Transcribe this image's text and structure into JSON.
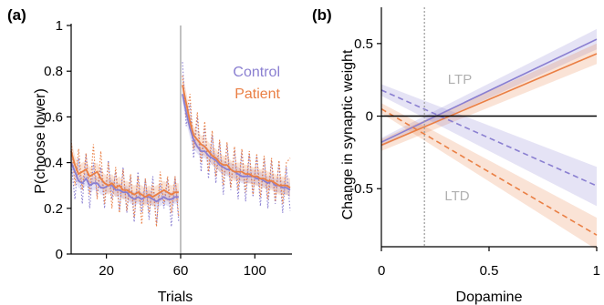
{
  "colors": {
    "control": "#8a7fd1",
    "patient": "#ea7f44",
    "vline": "#a0a0a0",
    "axis": "#000000",
    "annot": "#b0b0b0"
  },
  "chart_data": [
    {
      "panel": "(a)",
      "type": "line",
      "xlabel": "Trials",
      "ylabel": "P(choose lower)",
      "xlim": [
        1,
        120
      ],
      "ylim": [
        0,
        1
      ],
      "xticks": [
        20,
        60,
        100
      ],
      "yticks": [
        0,
        0.2,
        0.4,
        0.6,
        0.8,
        1
      ],
      "ytick_labels": [
        "0",
        "0.2",
        "0.4",
        "0.6",
        "0.8",
        "1"
      ],
      "vline_x": 60,
      "legend": [
        "Control",
        "Patient"
      ],
      "legend_position": "top-right",
      "x": [
        1,
        3,
        5,
        7,
        9,
        11,
        13,
        15,
        17,
        19,
        21,
        23,
        25,
        27,
        29,
        31,
        33,
        35,
        37,
        39,
        41,
        43,
        45,
        47,
        49,
        51,
        53,
        55,
        57,
        59,
        61,
        63,
        65,
        67,
        69,
        71,
        73,
        75,
        77,
        79,
        81,
        83,
        85,
        87,
        89,
        91,
        93,
        95,
        97,
        99,
        101,
        103,
        105,
        107,
        109,
        111,
        113,
        115,
        117,
        119
      ],
      "series": [
        {
          "name": "Control",
          "mean": [
            0.4,
            0.36,
            0.32,
            0.31,
            0.33,
            0.3,
            0.31,
            0.31,
            0.29,
            0.29,
            0.3,
            0.3,
            0.28,
            0.28,
            0.27,
            0.27,
            0.25,
            0.24,
            0.25,
            0.24,
            0.25,
            0.25,
            0.24,
            0.23,
            0.24,
            0.25,
            0.24,
            0.24,
            0.25,
            0.25,
            0.7,
            0.62,
            0.55,
            0.5,
            0.47,
            0.45,
            0.45,
            0.43,
            0.42,
            0.41,
            0.39,
            0.38,
            0.37,
            0.37,
            0.36,
            0.35,
            0.34,
            0.34,
            0.34,
            0.34,
            0.33,
            0.33,
            0.32,
            0.31,
            0.32,
            0.3,
            0.3,
            0.29,
            0.29,
            0.28
          ],
          "sem": [
            0.04,
            0.04,
            0.03,
            0.03,
            0.03,
            0.03,
            0.03,
            0.03,
            0.03,
            0.03,
            0.03,
            0.03,
            0.03,
            0.03,
            0.03,
            0.03,
            0.03,
            0.03,
            0.03,
            0.03,
            0.03,
            0.03,
            0.03,
            0.03,
            0.03,
            0.03,
            0.03,
            0.03,
            0.03,
            0.03,
            0.04,
            0.04,
            0.04,
            0.04,
            0.03,
            0.03,
            0.03,
            0.03,
            0.03,
            0.03,
            0.03,
            0.03,
            0.03,
            0.03,
            0.03,
            0.03,
            0.03,
            0.03,
            0.03,
            0.03,
            0.03,
            0.03,
            0.03,
            0.03,
            0.03,
            0.03,
            0.03,
            0.03,
            0.03,
            0.03
          ],
          "raw": [
            0.4,
            0.24,
            0.42,
            0.22,
            0.44,
            0.2,
            0.4,
            0.25,
            0.38,
            0.2,
            0.41,
            0.24,
            0.36,
            0.19,
            0.38,
            0.18,
            0.34,
            0.14,
            0.36,
            0.18,
            0.33,
            0.15,
            0.34,
            0.13,
            0.31,
            0.2,
            0.33,
            0.12,
            0.34,
            0.14,
            0.84,
            0.56,
            0.66,
            0.42,
            0.6,
            0.36,
            0.56,
            0.33,
            0.52,
            0.31,
            0.49,
            0.26,
            0.48,
            0.28,
            0.46,
            0.24,
            0.45,
            0.23,
            0.44,
            0.25,
            0.43,
            0.21,
            0.42,
            0.2,
            0.41,
            0.22,
            0.4,
            0.18,
            0.38,
            0.19
          ]
        },
        {
          "name": "Patient",
          "mean": [
            0.45,
            0.39,
            0.35,
            0.36,
            0.37,
            0.34,
            0.35,
            0.36,
            0.33,
            0.31,
            0.3,
            0.31,
            0.29,
            0.3,
            0.28,
            0.28,
            0.27,
            0.26,
            0.27,
            0.26,
            0.25,
            0.26,
            0.25,
            0.26,
            0.27,
            0.28,
            0.27,
            0.26,
            0.27,
            0.27,
            0.74,
            0.66,
            0.58,
            0.52,
            0.5,
            0.48,
            0.47,
            0.45,
            0.43,
            0.42,
            0.4,
            0.39,
            0.39,
            0.37,
            0.36,
            0.36,
            0.36,
            0.35,
            0.35,
            0.34,
            0.34,
            0.33,
            0.33,
            0.32,
            0.32,
            0.31,
            0.3,
            0.3,
            0.3,
            0.29
          ],
          "sem": [
            0.05,
            0.04,
            0.04,
            0.04,
            0.04,
            0.04,
            0.04,
            0.04,
            0.04,
            0.04,
            0.04,
            0.04,
            0.04,
            0.04,
            0.04,
            0.04,
            0.04,
            0.04,
            0.04,
            0.04,
            0.04,
            0.04,
            0.04,
            0.04,
            0.04,
            0.04,
            0.04,
            0.04,
            0.04,
            0.04,
            0.05,
            0.05,
            0.04,
            0.04,
            0.04,
            0.04,
            0.04,
            0.04,
            0.04,
            0.04,
            0.04,
            0.04,
            0.04,
            0.04,
            0.04,
            0.04,
            0.04,
            0.04,
            0.04,
            0.04,
            0.04,
            0.04,
            0.04,
            0.04,
            0.04,
            0.04,
            0.04,
            0.04,
            0.04,
            0.04
          ],
          "raw": [
            0.5,
            0.3,
            0.46,
            0.28,
            0.44,
            0.26,
            0.48,
            0.24,
            0.45,
            0.22,
            0.4,
            0.2,
            0.38,
            0.18,
            0.37,
            0.19,
            0.35,
            0.16,
            0.34,
            0.13,
            0.33,
            0.18,
            0.31,
            0.12,
            0.36,
            0.22,
            0.34,
            0.18,
            0.34,
            0.16,
            0.78,
            0.6,
            0.7,
            0.46,
            0.62,
            0.4,
            0.58,
            0.36,
            0.54,
            0.34,
            0.5,
            0.3,
            0.49,
            0.29,
            0.47,
            0.28,
            0.46,
            0.27,
            0.45,
            0.26,
            0.44,
            0.25,
            0.43,
            0.24,
            0.42,
            0.23,
            0.41,
            0.22,
            0.4,
            0.42
          ]
        }
      ]
    },
    {
      "panel": "(b)",
      "type": "line",
      "xlabel": "Dopamine",
      "ylabel": "Change in synaptic weight",
      "xlim": [
        0,
        1
      ],
      "ylim": [
        -0.9,
        0.75
      ],
      "xticks": [
        0,
        0.5,
        1
      ],
      "xtick_labels": [
        "0",
        "0.5",
        "1"
      ],
      "yticks": [
        0.5,
        0,
        -0.5
      ],
      "ytick_labels": [
        "0.5",
        "0",
        "-0.5"
      ],
      "vline_x": 0.2,
      "zero_line": true,
      "annotations": [
        "LTP",
        "LTD"
      ],
      "series": [
        {
          "name": "Control",
          "style": "solid",
          "x": [
            0,
            1
          ],
          "y": [
            -0.18,
            0.53
          ],
          "band": [
            [
              -0.21,
              0.46
            ],
            [
              -0.15,
              0.6
            ]
          ]
        },
        {
          "name": "Patient",
          "style": "solid",
          "x": [
            0,
            1
          ],
          "y": [
            -0.2,
            0.43
          ],
          "band": [
            [
              -0.24,
              0.36
            ],
            [
              -0.16,
              0.5
            ]
          ]
        },
        {
          "name": "Control",
          "style": "dashed",
          "x": [
            0,
            1
          ],
          "y": [
            0.18,
            -0.48
          ],
          "band": [
            [
              0.14,
              -0.62
            ],
            [
              0.22,
              -0.35
            ]
          ]
        },
        {
          "name": "Patient",
          "style": "dashed",
          "x": [
            0,
            1
          ],
          "y": [
            0.05,
            -0.82
          ],
          "band": [
            [
              0.02,
              -0.92
            ],
            [
              0.09,
              -0.7
            ]
          ]
        }
      ]
    }
  ]
}
